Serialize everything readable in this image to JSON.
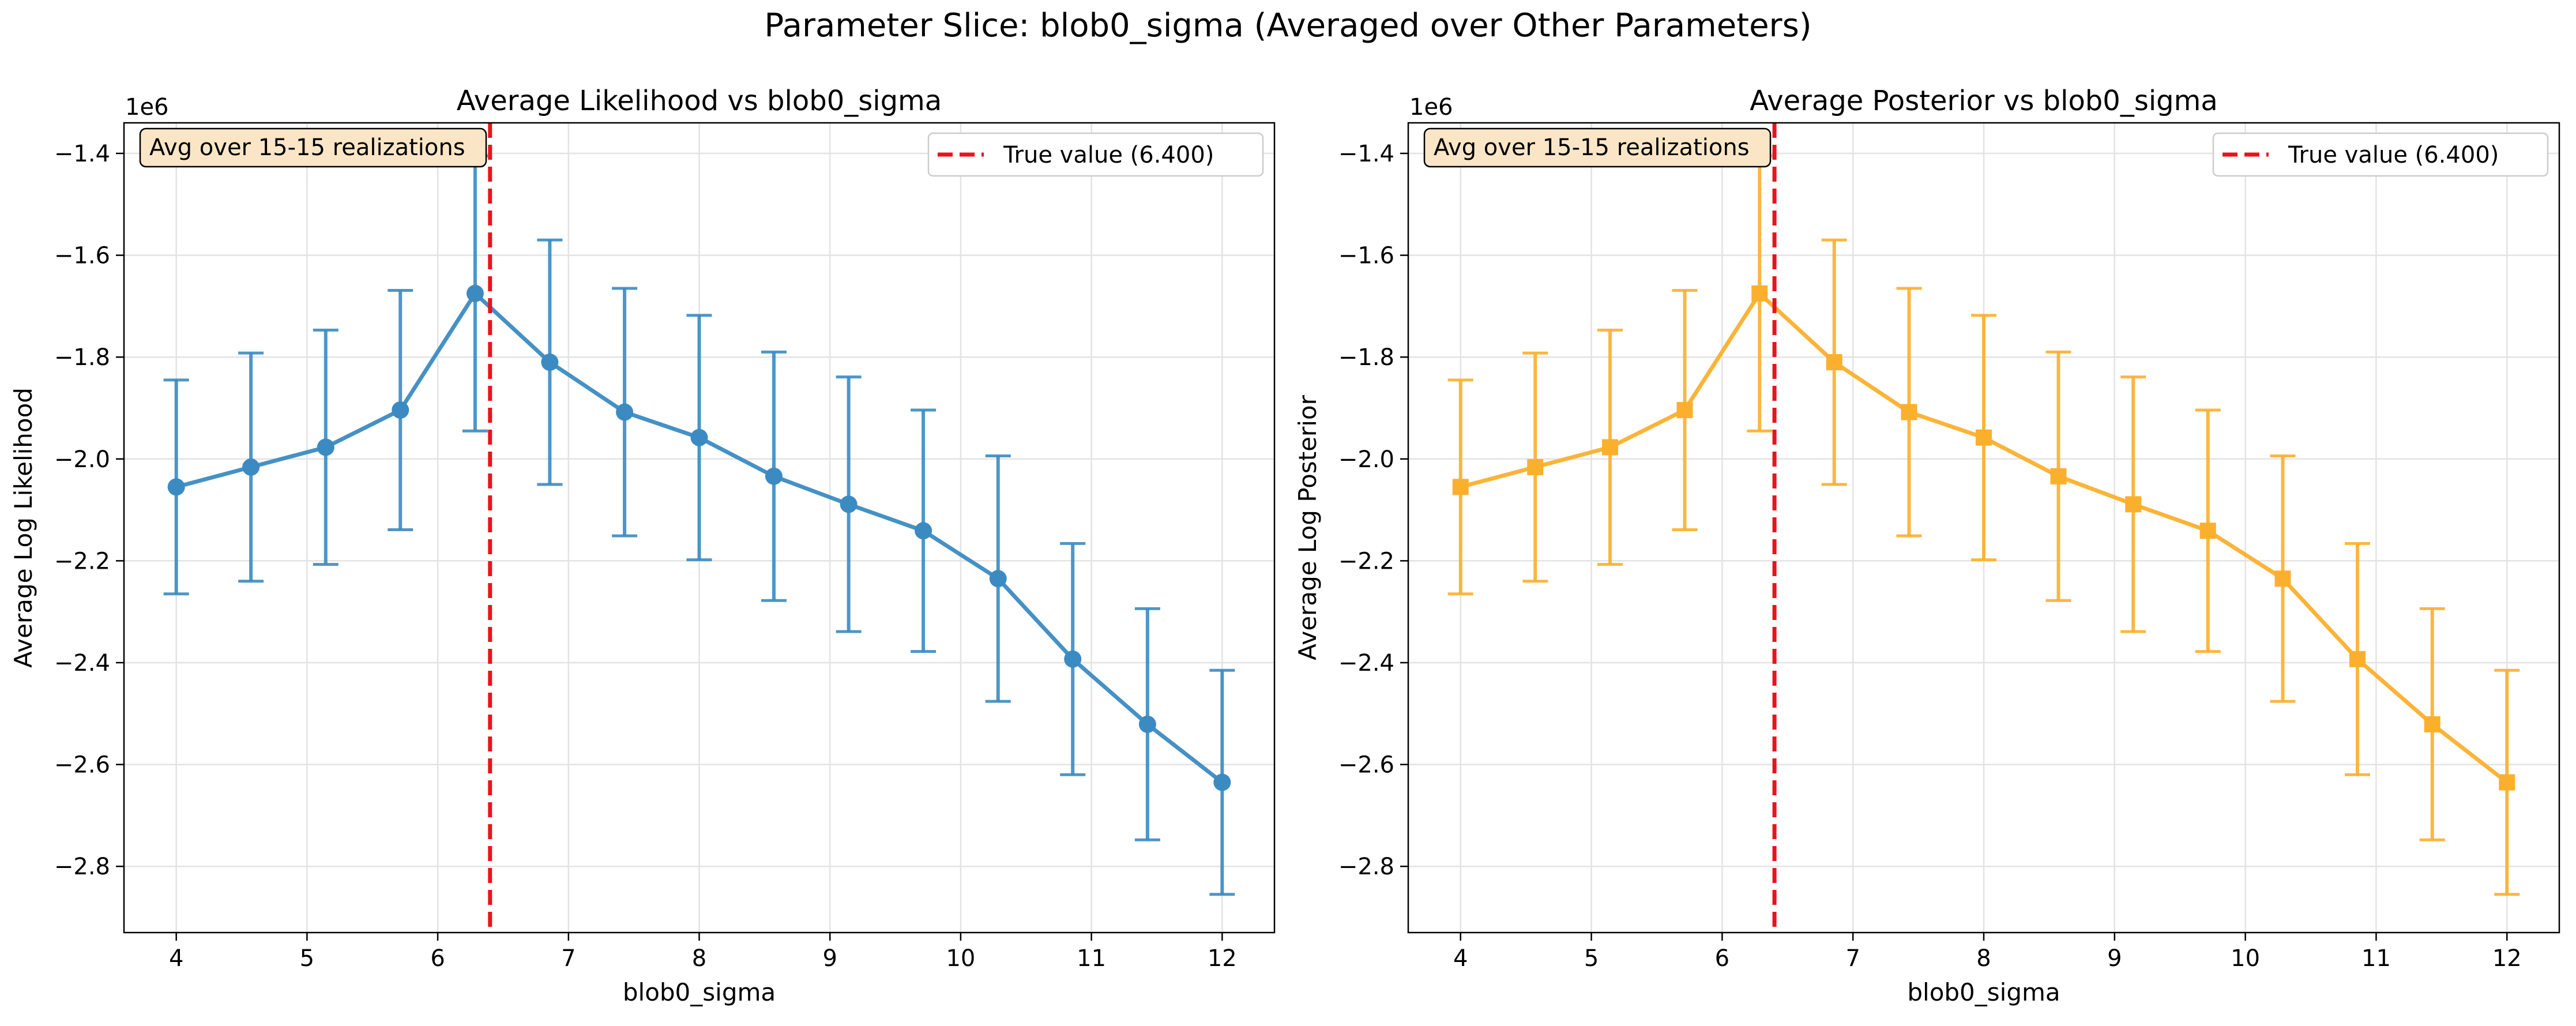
{
  "figure": {
    "suptitle": "Parameter Slice: blob0_sigma (Averaged over Other Parameters)"
  },
  "chart_data": [
    {
      "type": "line",
      "title": "Average Likelihood vs blob0_sigma",
      "xlabel": "blob0_sigma",
      "ylabel": "Average Log Likelihood",
      "offset_label": "1e6",
      "xlim": [
        3.6,
        12.4
      ],
      "ylim": [
        -2.93,
        -1.34
      ],
      "xticks": [
        4,
        5,
        6,
        7,
        8,
        9,
        10,
        11,
        12
      ],
      "yticks": [
        -1.4,
        -1.6,
        -1.8,
        -2.0,
        -2.2,
        -2.4,
        -2.6,
        -2.8
      ],
      "ytick_labels": [
        "−1.4",
        "−1.6",
        "−1.8",
        "−2.0",
        "−2.2",
        "−2.4",
        "−2.6",
        "−2.8"
      ],
      "grid": true,
      "legend_position": "top-right",
      "annotation": "Avg over 15-15 realizations",
      "reference_line": {
        "x": 6.4,
        "label": "True value (6.400)",
        "color": "#e8141c"
      },
      "series": [
        {
          "marker": "circle",
          "color": "#3b8bc2",
          "x": [
            4.0,
            4.571,
            5.143,
            5.714,
            6.286,
            6.857,
            7.429,
            8.0,
            8.571,
            9.143,
            9.714,
            10.286,
            10.857,
            11.429,
            12.0
          ],
          "y": [
            -2.055,
            -2.016,
            -1.977,
            -1.904,
            -1.675,
            -1.81,
            -1.908,
            -1.958,
            -2.034,
            -2.089,
            -2.141,
            -2.235,
            -2.393,
            -2.521,
            -2.635
          ],
          "err": [
            0.21,
            0.224,
            0.23,
            0.235,
            0.27,
            0.24,
            0.243,
            0.24,
            0.244,
            0.25,
            0.237,
            0.241,
            0.227,
            0.227,
            0.22
          ]
        }
      ]
    },
    {
      "type": "line",
      "title": "Average Posterior vs blob0_sigma",
      "xlabel": "blob0_sigma",
      "ylabel": "Average Log Posterior",
      "offset_label": "1e6",
      "xlim": [
        3.6,
        12.4
      ],
      "ylim": [
        -2.93,
        -1.34
      ],
      "xticks": [
        4,
        5,
        6,
        7,
        8,
        9,
        10,
        11,
        12
      ],
      "yticks": [
        -1.4,
        -1.6,
        -1.8,
        -2.0,
        -2.2,
        -2.4,
        -2.6,
        -2.8
      ],
      "ytick_labels": [
        "−1.4",
        "−1.6",
        "−1.8",
        "−2.0",
        "−2.2",
        "−2.4",
        "−2.6",
        "−2.8"
      ],
      "grid": true,
      "legend_position": "top-right",
      "annotation": "Avg over 15-15 realizations",
      "reference_line": {
        "x": 6.4,
        "label": "True value (6.400)",
        "color": "#e8141c"
      },
      "series": [
        {
          "marker": "square",
          "color": "#fbb02d",
          "x": [
            4.0,
            4.571,
            5.143,
            5.714,
            6.286,
            6.857,
            7.429,
            8.0,
            8.571,
            9.143,
            9.714,
            10.286,
            10.857,
            11.429,
            12.0
          ],
          "y": [
            -2.055,
            -2.016,
            -1.977,
            -1.904,
            -1.675,
            -1.81,
            -1.908,
            -1.958,
            -2.034,
            -2.089,
            -2.141,
            -2.235,
            -2.393,
            -2.521,
            -2.635
          ],
          "err": [
            0.21,
            0.224,
            0.23,
            0.235,
            0.27,
            0.24,
            0.243,
            0.24,
            0.244,
            0.25,
            0.237,
            0.241,
            0.227,
            0.227,
            0.22
          ]
        }
      ]
    }
  ]
}
